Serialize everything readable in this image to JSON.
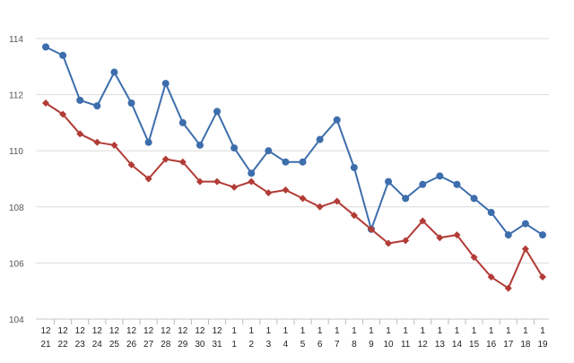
{
  "chart_data": {
    "type": "line",
    "categories": [
      [
        "12",
        "21"
      ],
      [
        "12",
        "22"
      ],
      [
        "12",
        "23"
      ],
      [
        "12",
        "24"
      ],
      [
        "12",
        "25"
      ],
      [
        "12",
        "26"
      ],
      [
        "12",
        "27"
      ],
      [
        "12",
        "28"
      ],
      [
        "12",
        "29"
      ],
      [
        "12",
        "30"
      ],
      [
        "12",
        "31"
      ],
      [
        "1",
        "1"
      ],
      [
        "1",
        "2"
      ],
      [
        "1",
        "3"
      ],
      [
        "1",
        "4"
      ],
      [
        "1",
        "5"
      ],
      [
        "1",
        "6"
      ],
      [
        "1",
        "7"
      ],
      [
        "1",
        "8"
      ],
      [
        "1",
        "9"
      ],
      [
        "1",
        "10"
      ],
      [
        "1",
        "11"
      ],
      [
        "1",
        "12"
      ],
      [
        "1",
        "13"
      ],
      [
        "1",
        "14"
      ],
      [
        "1",
        "15"
      ],
      [
        "1",
        "16"
      ],
      [
        "1",
        "17"
      ],
      [
        "1",
        "18"
      ],
      [
        "1",
        "19"
      ]
    ],
    "series": [
      {
        "color": "#3d6eac",
        "marker": "circle",
        "values": [
          113.7,
          113.4,
          111.8,
          111.6,
          112.8,
          111.7,
          110.3,
          112.4,
          111.0,
          110.2,
          111.4,
          110.1,
          109.2,
          110.0,
          109.6,
          109.6,
          110.4,
          111.1,
          109.4,
          107.2,
          108.9,
          108.3,
          108.8,
          109.1,
          108.8,
          108.3,
          107.8,
          107.0,
          107.4,
          107.0
        ]
      },
      {
        "color": "#b23b36",
        "marker": "diamond",
        "values": [
          111.7,
          111.3,
          110.6,
          110.3,
          110.2,
          109.5,
          109.0,
          109.7,
          109.6,
          108.9,
          108.9,
          108.7,
          108.9,
          108.5,
          108.6,
          108.3,
          108.0,
          108.2,
          107.7,
          107.2,
          106.7,
          106.8,
          107.5,
          106.9,
          107.0,
          106.2,
          105.5,
          105.1,
          106.5,
          105.5
        ]
      }
    ],
    "yticks": [
      104,
      106,
      108,
      110,
      112,
      114
    ],
    "ylim": [
      104,
      115
    ],
    "grid": true,
    "legend": "none",
    "title": "",
    "xlabel": "",
    "ylabel": ""
  }
}
